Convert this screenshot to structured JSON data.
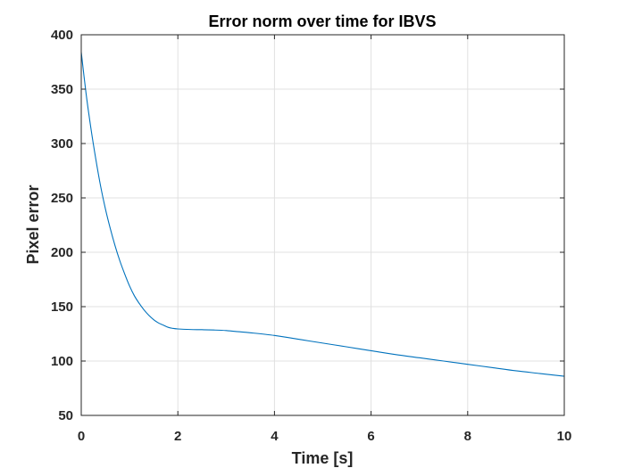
{
  "chart_data": {
    "type": "line",
    "title": "Error norm over time for IBVS",
    "xlabel": "Time [s]",
    "ylabel": "Pixel error",
    "xlim": [
      0,
      10
    ],
    "ylim": [
      50,
      400
    ],
    "xticks": [
      0,
      2,
      4,
      6,
      8,
      10
    ],
    "yticks": [
      50,
      100,
      150,
      200,
      250,
      300,
      350,
      400
    ],
    "grid": true,
    "line_color": "#0072BD",
    "series": [
      {
        "x": [
          0,
          0.1,
          0.2,
          0.3,
          0.4,
          0.5,
          0.6,
          0.7,
          0.8,
          0.9,
          1.0,
          1.1,
          1.2,
          1.3,
          1.4,
          1.5,
          1.6,
          1.7,
          1.8,
          1.9,
          2.0,
          2.25,
          2.5,
          2.75,
          3.0,
          3.25,
          3.5,
          4.0,
          4.5,
          5.0,
          5.5,
          6.0,
          6.5,
          7.0,
          7.5,
          8.0,
          8.5,
          9.0,
          9.5,
          10.0
        ],
        "y": [
          384,
          346,
          314,
          286,
          261,
          240,
          222,
          206,
          192,
          180,
          169,
          160,
          153,
          147,
          142,
          138,
          135,
          133,
          131,
          130,
          129.5,
          129,
          128.8,
          128.5,
          128,
          127,
          126,
          123.5,
          120,
          116.5,
          113,
          109.5,
          106,
          103,
          100,
          97,
          94,
          91,
          88.5,
          86
        ]
      }
    ]
  }
}
